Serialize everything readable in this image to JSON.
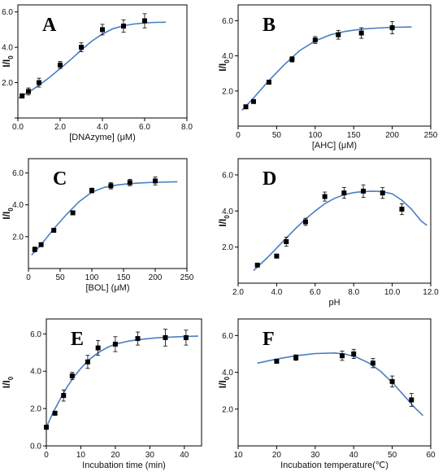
{
  "chart_data": [
    {
      "id": "A",
      "panel_label": "A",
      "type": "scatter",
      "xlabel": "[DNAzyme] (μM)",
      "ylabel": "I/I",
      "ylabel_sub": "0",
      "xlim": [
        0,
        8
      ],
      "ylim": [
        0,
        6.4
      ],
      "xticks": [
        0,
        2,
        4,
        6,
        8
      ],
      "xtick_labels": [
        "0.0",
        "2.0",
        "4.0",
        "6.0",
        "8.0"
      ],
      "yticks": [
        0,
        2,
        4,
        6
      ],
      "ytick_labels": [
        "",
        "2.0",
        "4.0",
        "6.0"
      ],
      "points": [
        {
          "x": 0.2,
          "y": 1.25,
          "err": 0.12
        },
        {
          "x": 0.5,
          "y": 1.5,
          "err": 0.2
        },
        {
          "x": 1.0,
          "y": 2.0,
          "err": 0.25
        },
        {
          "x": 2.0,
          "y": 3.0,
          "err": 0.2
        },
        {
          "x": 3.0,
          "y": 4.0,
          "err": 0.25
        },
        {
          "x": 4.0,
          "y": 5.0,
          "err": 0.3
        },
        {
          "x": 5.0,
          "y": 5.2,
          "err": 0.35
        },
        {
          "x": 6.0,
          "y": 5.5,
          "err": 0.4
        }
      ],
      "fit": [
        [
          0.0,
          1.1
        ],
        [
          0.5,
          1.45
        ],
        [
          1.0,
          1.85
        ],
        [
          1.5,
          2.3
        ],
        [
          2.0,
          2.8
        ],
        [
          2.5,
          3.3
        ],
        [
          3.0,
          3.85
        ],
        [
          3.5,
          4.35
        ],
        [
          4.0,
          4.75
        ],
        [
          4.5,
          5.05
        ],
        [
          5.0,
          5.22
        ],
        [
          5.5,
          5.32
        ],
        [
          6.0,
          5.38
        ],
        [
          6.5,
          5.41
        ],
        [
          7.0,
          5.42
        ]
      ]
    },
    {
      "id": "B",
      "panel_label": "B",
      "type": "scatter",
      "xlabel": "[AHC] (μM)",
      "ylabel": "I/I",
      "ylabel_sub": "0",
      "xlim": [
        0,
        250
      ],
      "ylim": [
        0,
        6.9
      ],
      "xticks": [
        0,
        50,
        100,
        150,
        200,
        250
      ],
      "xtick_labels": [
        "0",
        "50",
        "100",
        "150",
        "200",
        "250"
      ],
      "yticks": [
        2,
        4,
        6
      ],
      "ytick_labels": [
        "2.0",
        "4.0",
        "6.0"
      ],
      "points": [
        {
          "x": 10,
          "y": 1.1,
          "err": 0.1
        },
        {
          "x": 20,
          "y": 1.4,
          "err": 0.1
        },
        {
          "x": 40,
          "y": 2.5,
          "err": 0.1
        },
        {
          "x": 70,
          "y": 3.8,
          "err": 0.15
        },
        {
          "x": 100,
          "y": 4.9,
          "err": 0.2
        },
        {
          "x": 130,
          "y": 5.2,
          "err": 0.25
        },
        {
          "x": 160,
          "y": 5.3,
          "err": 0.3
        },
        {
          "x": 200,
          "y": 5.6,
          "err": 0.35
        }
      ],
      "fit": [
        [
          5,
          0.9
        ],
        [
          20,
          1.6
        ],
        [
          40,
          2.6
        ],
        [
          60,
          3.5
        ],
        [
          80,
          4.3
        ],
        [
          100,
          4.85
        ],
        [
          120,
          5.2
        ],
        [
          140,
          5.4
        ],
        [
          160,
          5.52
        ],
        [
          180,
          5.58
        ],
        [
          200,
          5.62
        ],
        [
          225,
          5.64
        ]
      ]
    },
    {
      "id": "C",
      "panel_label": "C",
      "type": "scatter",
      "xlabel": "[BOL] (μM)",
      "ylabel": "I/I",
      "ylabel_sub": "0",
      "xlim": [
        0,
        250
      ],
      "ylim": [
        0,
        6.9
      ],
      "xticks": [
        0,
        50,
        100,
        150,
        200,
        250
      ],
      "xtick_labels": [
        "0",
        "50",
        "100",
        "150",
        "200",
        "250"
      ],
      "yticks": [
        2,
        4,
        6
      ],
      "ytick_labels": [
        "2.0",
        "4.0",
        "6.0"
      ],
      "points": [
        {
          "x": 10,
          "y": 1.2,
          "err": 0.15
        },
        {
          "x": 20,
          "y": 1.5,
          "err": 0.1
        },
        {
          "x": 40,
          "y": 2.4,
          "err": 0.1
        },
        {
          "x": 70,
          "y": 3.5,
          "err": 0.1
        },
        {
          "x": 100,
          "y": 4.9,
          "err": 0.15
        },
        {
          "x": 130,
          "y": 5.2,
          "err": 0.2
        },
        {
          "x": 160,
          "y": 5.4,
          "err": 0.2
        },
        {
          "x": 200,
          "y": 5.5,
          "err": 0.25
        }
      ],
      "fit": [
        [
          5,
          0.85
        ],
        [
          20,
          1.5
        ],
        [
          40,
          2.5
        ],
        [
          60,
          3.4
        ],
        [
          80,
          4.2
        ],
        [
          100,
          4.8
        ],
        [
          120,
          5.1
        ],
        [
          140,
          5.25
        ],
        [
          160,
          5.33
        ],
        [
          180,
          5.38
        ],
        [
          200,
          5.42
        ],
        [
          235,
          5.45
        ]
      ]
    },
    {
      "id": "D",
      "panel_label": "D",
      "type": "scatter",
      "xlabel": "pH",
      "ylabel": "I/I",
      "ylabel_sub": "0",
      "xlim": [
        2,
        12
      ],
      "ylim": [
        0,
        6.9
      ],
      "xticks": [
        2,
        4,
        6,
        8,
        10,
        12
      ],
      "xtick_labels": [
        "2.0",
        "4.0",
        "6.0",
        "8.0",
        "10.0",
        "12.0"
      ],
      "yticks": [
        2,
        4,
        6
      ],
      "ytick_labels": [
        "2.0",
        "4.0",
        "6.0"
      ],
      "points": [
        {
          "x": 3.0,
          "y": 1.0,
          "err": 0.1
        },
        {
          "x": 4.0,
          "y": 1.5,
          "err": 0.1
        },
        {
          "x": 4.5,
          "y": 2.3,
          "err": 0.25
        },
        {
          "x": 5.5,
          "y": 3.4,
          "err": 0.2
        },
        {
          "x": 6.5,
          "y": 4.8,
          "err": 0.25
        },
        {
          "x": 7.5,
          "y": 5.0,
          "err": 0.3
        },
        {
          "x": 8.5,
          "y": 5.1,
          "err": 0.35
        },
        {
          "x": 9.5,
          "y": 5.0,
          "err": 0.3
        },
        {
          "x": 10.5,
          "y": 4.1,
          "err": 0.3
        }
      ],
      "fit": [
        [
          2.8,
          0.7
        ],
        [
          3.5,
          1.4
        ],
        [
          4.0,
          1.95
        ],
        [
          4.5,
          2.5
        ],
        [
          5.0,
          3.05
        ],
        [
          5.5,
          3.55
        ],
        [
          6.0,
          4.0
        ],
        [
          6.5,
          4.4
        ],
        [
          7.0,
          4.7
        ],
        [
          7.5,
          4.9
        ],
        [
          8.0,
          5.02
        ],
        [
          8.5,
          5.08
        ],
        [
          9.0,
          5.1
        ],
        [
          9.5,
          5.07
        ],
        [
          10.0,
          4.95
        ],
        [
          10.5,
          4.6
        ],
        [
          11.0,
          4.1
        ],
        [
          11.5,
          3.45
        ],
        [
          11.8,
          3.2
        ]
      ]
    },
    {
      "id": "E",
      "panel_label": "E",
      "type": "scatter",
      "xlabel": "Incubation time (min)",
      "ylabel": "I/I",
      "ylabel_sub": "0",
      "xlim": [
        0,
        45
      ],
      "ylim": [
        0,
        6.8
      ],
      "xticks": [
        0,
        10,
        20,
        30,
        40
      ],
      "xtick_labels": [
        "0",
        "10",
        "20",
        "30",
        "40"
      ],
      "yticks": [
        0,
        2,
        4,
        6
      ],
      "ytick_labels": [
        "0.0",
        "2.0",
        "4.0",
        "6.0"
      ],
      "points": [
        {
          "x": 0,
          "y": 1.0,
          "err": 0.1
        },
        {
          "x": 2.5,
          "y": 1.75,
          "err": 0.1
        },
        {
          "x": 5,
          "y": 2.7,
          "err": 0.3
        },
        {
          "x": 7.5,
          "y": 3.75,
          "err": 0.2
        },
        {
          "x": 12,
          "y": 4.5,
          "err": 0.35
        },
        {
          "x": 15,
          "y": 5.25,
          "err": 0.4
        },
        {
          "x": 20,
          "y": 5.45,
          "err": 0.4
        },
        {
          "x": 26.5,
          "y": 5.75,
          "err": 0.35
        },
        {
          "x": 34.5,
          "y": 5.8,
          "err": 0.45
        },
        {
          "x": 40.5,
          "y": 5.8,
          "err": 0.4
        }
      ],
      "fit": [
        [
          0,
          1.0
        ],
        [
          2,
          1.8
        ],
        [
          4,
          2.5
        ],
        [
          6,
          3.15
        ],
        [
          8,
          3.7
        ],
        [
          10,
          4.15
        ],
        [
          12,
          4.55
        ],
        [
          14,
          4.85
        ],
        [
          16,
          5.1
        ],
        [
          18,
          5.3
        ],
        [
          20,
          5.45
        ],
        [
          24,
          5.62
        ],
        [
          28,
          5.72
        ],
        [
          32,
          5.79
        ],
        [
          36,
          5.83
        ],
        [
          40,
          5.86
        ],
        [
          44,
          5.88
        ]
      ]
    },
    {
      "id": "F",
      "panel_label": "F",
      "type": "scatter",
      "xlabel": "Incubation temperature(℃)",
      "ylabel": "I/I",
      "ylabel_sub": "0",
      "xlim": [
        10,
        60
      ],
      "ylim": [
        0,
        6.9
      ],
      "xticks": [
        10,
        20,
        30,
        40,
        50,
        60
      ],
      "xtick_labels": [
        "10",
        "20",
        "30",
        "40",
        "50",
        "60"
      ],
      "yticks": [
        2,
        4,
        6
      ],
      "ytick_labels": [
        "2.0",
        "4.0",
        "6.0"
      ],
      "points": [
        {
          "x": 20,
          "y": 4.6,
          "err": 0.1
        },
        {
          "x": 25,
          "y": 4.8,
          "err": 0.15
        },
        {
          "x": 37,
          "y": 4.9,
          "err": 0.25
        },
        {
          "x": 40,
          "y": 5.0,
          "err": 0.25
        },
        {
          "x": 45,
          "y": 4.5,
          "err": 0.25
        },
        {
          "x": 50,
          "y": 3.5,
          "err": 0.3
        },
        {
          "x": 55,
          "y": 2.5,
          "err": 0.35
        }
      ],
      "fit": [
        [
          15,
          4.5
        ],
        [
          20,
          4.72
        ],
        [
          25,
          4.9
        ],
        [
          30,
          5.02
        ],
        [
          35,
          5.05
        ],
        [
          38,
          4.98
        ],
        [
          41,
          4.8
        ],
        [
          44,
          4.5
        ],
        [
          47,
          4.05
        ],
        [
          50,
          3.45
        ],
        [
          53,
          2.75
        ],
        [
          56,
          2.05
        ],
        [
          58,
          1.65
        ]
      ]
    }
  ]
}
